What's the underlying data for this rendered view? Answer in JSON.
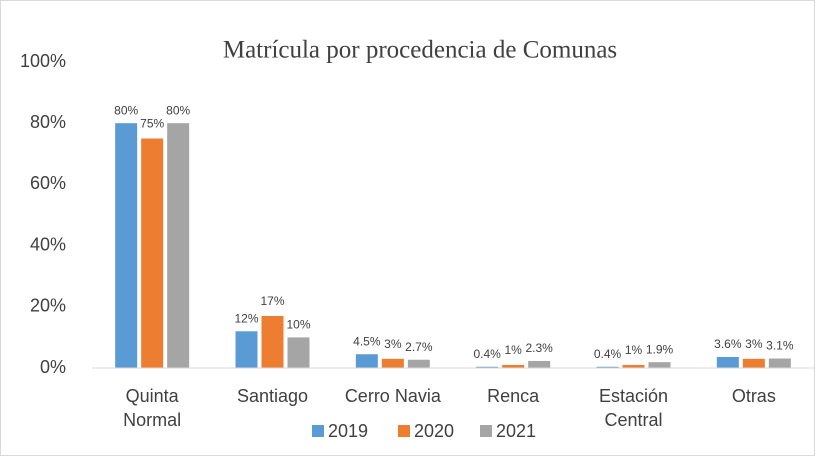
{
  "chart_data": {
    "type": "bar",
    "title": "Matrícula por procedencia de Comunas",
    "categories": [
      "Quinta Normal",
      "Santiago",
      "Cerro Navia",
      "Renca",
      "Estación Central",
      "Otras"
    ],
    "series": [
      {
        "name": "2019",
        "color": "#5b9bd5",
        "values": [
          80,
          12,
          4.5,
          0.4,
          0.4,
          3.6
        ],
        "value_labels": [
          "80%",
          "12%",
          "4.5%",
          "0.4%",
          "0.4%",
          "3.6%"
        ]
      },
      {
        "name": "2020",
        "color": "#ed7d31",
        "values": [
          75,
          17,
          3,
          1,
          1,
          3
        ],
        "value_labels": [
          "75%",
          "17%",
          "3%",
          "1%",
          "1%",
          "3%"
        ]
      },
      {
        "name": "2021",
        "color": "#a5a5a5",
        "values": [
          80,
          10,
          2.7,
          2.3,
          1.9,
          3.1
        ],
        "value_labels": [
          "80%",
          "10%",
          "2.7%",
          "2.3%",
          "1.9%",
          "3.1%"
        ]
      }
    ],
    "ylim": [
      0,
      100
    ],
    "yticks": [
      {
        "value": 0,
        "label": "0%"
      },
      {
        "value": 20,
        "label": "20%"
      },
      {
        "value": 40,
        "label": "40%"
      },
      {
        "value": 60,
        "label": "60%"
      },
      {
        "value": 80,
        "label": "80%"
      },
      {
        "value": 100,
        "label": "100%"
      }
    ],
    "grid": false,
    "legend": "bottom"
  }
}
